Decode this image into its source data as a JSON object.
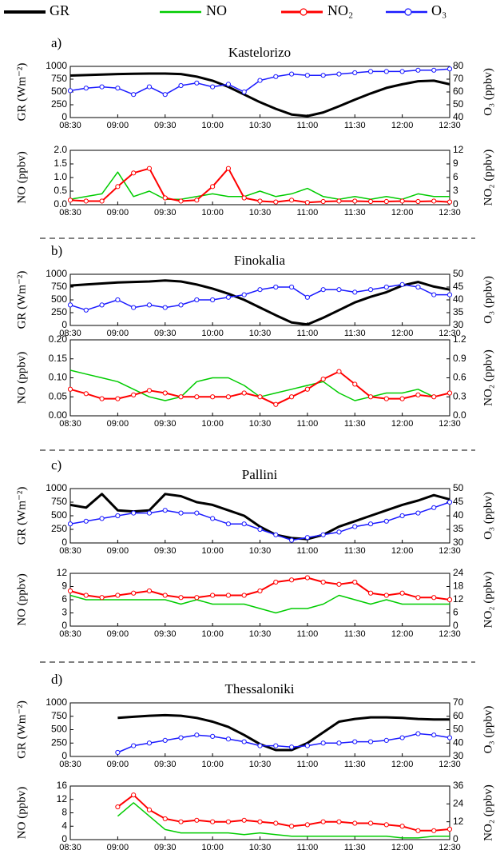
{
  "chart_data": [
    {
      "type": "line",
      "label": "a)",
      "title": "Kastelorizo",
      "ylabel": "GR (Wm⁻²)",
      "y2label": "O₃ (ppbv)",
      "x": [
        "08:30",
        "08:40",
        "08:50",
        "09:00",
        "09:10",
        "09:20",
        "09:30",
        "09:40",
        "09:50",
        "10:00",
        "10:10",
        "10:20",
        "10:30",
        "10:40",
        "10:50",
        "11:00",
        "11:10",
        "11:20",
        "11:30",
        "11:40",
        "11:50",
        "12:00",
        "12:10",
        "12:20",
        "12:30"
      ],
      "xlim": [
        "08:30",
        "12:30"
      ],
      "xticks": [
        "08:30",
        "09:00",
        "09:30",
        "10:00",
        "10:30",
        "11:00",
        "11:30",
        "12:00",
        "12:30"
      ],
      "ylim": [
        0,
        1000
      ],
      "yticks": [
        0,
        250,
        500,
        750,
        1000
      ],
      "y2lim": [
        40,
        80
      ],
      "y2ticks": [
        40,
        50,
        60,
        70,
        80
      ],
      "series": [
        {
          "name": "GR",
          "color": "#000000",
          "width": 3,
          "values": [
            820,
            830,
            840,
            850,
            855,
            860,
            860,
            850,
            800,
            720,
            600,
            450,
            300,
            170,
            60,
            30,
            100,
            220,
            350,
            470,
            580,
            650,
            710,
            720,
            650
          ]
        },
        {
          "name": "O₃",
          "color": "#1a1aff",
          "width": 1.5,
          "marker": "circle",
          "axis": "y2",
          "values": [
            61,
            63,
            64,
            63,
            58,
            64,
            58,
            65,
            67,
            64,
            66,
            60,
            69,
            72,
            74,
            73,
            73,
            74,
            75,
            76,
            76,
            76,
            77,
            77,
            78
          ]
        }
      ]
    },
    {
      "type": "line",
      "ylabel": "NO (ppbv)",
      "y2label": "NO₂ (ppbv)",
      "x": [
        "08:30",
        "08:40",
        "08:50",
        "09:00",
        "09:10",
        "09:20",
        "09:30",
        "09:40",
        "09:50",
        "10:00",
        "10:10",
        "10:20",
        "10:30",
        "10:40",
        "10:50",
        "11:00",
        "11:10",
        "11:20",
        "11:30",
        "11:40",
        "11:50",
        "12:00",
        "12:10",
        "12:20",
        "12:30"
      ],
      "xlim": [
        "08:30",
        "12:30"
      ],
      "xticks": [
        "08:30",
        "09:00",
        "09:30",
        "10:00",
        "10:30",
        "11:00",
        "11:30",
        "12:00",
        "12:30"
      ],
      "ylim": [
        0,
        2
      ],
      "yticks": [
        {
          "value": 0,
          "label": "0.0"
        },
        {
          "value": 0.5,
          "label": "0.5"
        },
        {
          "value": 1,
          "label": "1.0"
        },
        {
          "value": 1.5,
          "label": "1.5"
        },
        {
          "value": 2,
          "label": "2.0"
        }
      ],
      "y2lim": [
        0,
        12
      ],
      "y2ticks": [
        0,
        3,
        6,
        9,
        12
      ],
      "series": [
        {
          "name": "NO",
          "color": "#00cc00",
          "width": 1.5,
          "values": [
            0.2,
            0.3,
            0.4,
            1.2,
            0.3,
            0.5,
            0.2,
            0.2,
            0.3,
            0.4,
            0.3,
            0.3,
            0.5,
            0.3,
            0.4,
            0.6,
            0.3,
            0.2,
            0.3,
            0.2,
            0.3,
            0.2,
            0.4,
            0.3,
            0.3
          ]
        },
        {
          "name": "NO₂",
          "color": "#ff0000",
          "width": 2,
          "marker": "circle",
          "axis": "y2",
          "values": [
            1,
            0.8,
            0.8,
            4,
            7,
            8,
            1.5,
            0.8,
            1,
            4,
            8,
            1.5,
            0.8,
            0.6,
            1,
            0.5,
            0.7,
            0.8,
            0.8,
            0.7,
            0.7,
            0.8,
            0.7,
            0.8,
            0.6
          ]
        }
      ]
    },
    {
      "type": "line",
      "label": "b)",
      "title": "Finokalia",
      "ylabel": "GR (Wm⁻²)",
      "y2label": "O₃ (ppbv)",
      "x": [
        "08:30",
        "08:40",
        "08:50",
        "09:00",
        "09:10",
        "09:20",
        "09:30",
        "09:40",
        "09:50",
        "10:00",
        "10:10",
        "10:20",
        "10:30",
        "10:40",
        "10:50",
        "11:00",
        "11:10",
        "11:20",
        "11:30",
        "11:40",
        "11:50",
        "12:00",
        "12:10",
        "12:20",
        "12:30"
      ],
      "xlim": [
        "08:30",
        "12:30"
      ],
      "xticks": [
        "08:30",
        "09:00",
        "09:30",
        "10:00",
        "10:30",
        "11:00",
        "11:30",
        "12:00",
        "12:30"
      ],
      "ylim": [
        0,
        1000
      ],
      "yticks": [
        0,
        250,
        500,
        750,
        1000
      ],
      "y2lim": [
        30,
        50
      ],
      "y2ticks": [
        30,
        35,
        40,
        45,
        50
      ],
      "series": [
        {
          "color": "#000000",
          "width": 3,
          "values": [
            780,
            800,
            820,
            840,
            850,
            860,
            880,
            860,
            800,
            720,
            620,
            500,
            350,
            200,
            60,
            20,
            150,
            300,
            450,
            560,
            650,
            780,
            850,
            760,
            700
          ]
        },
        {
          "color": "#1a1aff",
          "width": 1.5,
          "marker": "circle",
          "axis": "y2",
          "values": [
            38,
            36,
            38,
            40,
            37,
            38,
            37,
            38,
            40,
            40,
            41,
            42,
            44,
            45,
            45,
            41,
            44,
            44,
            43,
            44,
            45,
            46,
            45,
            42,
            42
          ]
        }
      ]
    },
    {
      "type": "line",
      "ylabel": "NO (ppbv)",
      "y2label": "NO₂ (ppbv)",
      "x": [
        "08:30",
        "08:40",
        "08:50",
        "09:00",
        "09:10",
        "09:20",
        "09:30",
        "09:40",
        "09:50",
        "10:00",
        "10:10",
        "10:20",
        "10:30",
        "10:40",
        "10:50",
        "11:00",
        "11:10",
        "11:20",
        "11:30",
        "11:40",
        "11:50",
        "12:00",
        "12:10",
        "12:20",
        "12:30"
      ],
      "xlim": [
        "08:30",
        "12:30"
      ],
      "xticks": [
        "08:30",
        "09:00",
        "09:30",
        "10:00",
        "10:30",
        "11:00",
        "11:30",
        "12:00",
        "12:30"
      ],
      "ylim": [
        0,
        0.2
      ],
      "yticks": [
        {
          "value": 0,
          "label": "0.00"
        },
        {
          "value": 0.05,
          "label": "0.05"
        },
        {
          "value": 0.1,
          "label": "0.10"
        },
        {
          "value": 0.15,
          "label": "0.15"
        },
        {
          "value": 0.2,
          "label": "0.20"
        }
      ],
      "y2lim": [
        0,
        1.2
      ],
      "y2ticks": [
        {
          "value": 0,
          "label": "0.0"
        },
        0.3,
        0.6,
        0.9,
        1.2
      ],
      "series": [
        {
          "color": "#00cc00",
          "width": 1.5,
          "values": [
            0.12,
            0.11,
            0.1,
            0.09,
            0.07,
            0.05,
            0.04,
            0.05,
            0.09,
            0.1,
            0.1,
            0.08,
            0.05,
            0.06,
            0.07,
            0.08,
            0.09,
            0.06,
            0.04,
            0.05,
            0.06,
            0.06,
            0.07,
            0.05,
            0.06
          ]
        },
        {
          "color": "#ff0000",
          "width": 2,
          "marker": "circle",
          "axis": "y2",
          "values": [
            0.42,
            0.35,
            0.27,
            0.27,
            0.33,
            0.4,
            0.36,
            0.3,
            0.3,
            0.3,
            0.3,
            0.36,
            0.3,
            0.18,
            0.3,
            0.42,
            0.58,
            0.7,
            0.5,
            0.3,
            0.27,
            0.27,
            0.33,
            0.3,
            0.36
          ]
        }
      ]
    },
    {
      "type": "line",
      "label": "c)",
      "title": "Pallini",
      "ylabel": "GR (Wm⁻²)",
      "y2label": "O₃ (ppbv)",
      "x": [
        "08:30",
        "08:40",
        "08:50",
        "09:00",
        "09:10",
        "09:20",
        "09:30",
        "09:40",
        "09:50",
        "10:00",
        "10:10",
        "10:20",
        "10:30",
        "10:40",
        "10:50",
        "11:00",
        "11:10",
        "11:20",
        "11:30",
        "11:40",
        "11:50",
        "12:00",
        "12:10",
        "12:20",
        "12:30"
      ],
      "xlim": [
        "08:30",
        "12:30"
      ],
      "xticks": [
        "08:30",
        "09:00",
        "09:30",
        "10:00",
        "10:30",
        "11:00",
        "11:30",
        "12:00",
        "12:30"
      ],
      "ylim": [
        0,
        1000
      ],
      "yticks": [
        0,
        250,
        500,
        750,
        1000
      ],
      "y2lim": [
        30,
        50
      ],
      "y2ticks": [
        30,
        35,
        40,
        45,
        50
      ],
      "series": [
        {
          "color": "#000000",
          "width": 3,
          "values": [
            700,
            650,
            900,
            600,
            580,
            600,
            900,
            860,
            750,
            700,
            600,
            500,
            300,
            150,
            90,
            70,
            150,
            300,
            400,
            500,
            600,
            700,
            780,
            880,
            800
          ]
        },
        {
          "color": "#1a1aff",
          "width": 1.5,
          "marker": "circle",
          "axis": "y2",
          "values": [
            37,
            38,
            39,
            40,
            41,
            41,
            42,
            41,
            41,
            39,
            37,
            37,
            35,
            33,
            31,
            32,
            33,
            34,
            36,
            37,
            38,
            40,
            41,
            43,
            45
          ]
        }
      ]
    },
    {
      "type": "line",
      "ylabel": "NO (ppbv)",
      "y2label": "NO₂ (ppbv)",
      "x": [
        "08:30",
        "08:40",
        "08:50",
        "09:00",
        "09:10",
        "09:20",
        "09:30",
        "09:40",
        "09:50",
        "10:00",
        "10:10",
        "10:20",
        "10:30",
        "10:40",
        "10:50",
        "11:00",
        "11:10",
        "11:20",
        "11:30",
        "11:40",
        "11:50",
        "12:00",
        "12:10",
        "12:20",
        "12:30"
      ],
      "xlim": [
        "08:30",
        "12:30"
      ],
      "xticks": [
        "08:30",
        "09:00",
        "09:30",
        "10:00",
        "10:30",
        "11:00",
        "11:30",
        "12:00",
        "12:30"
      ],
      "ylim": [
        0,
        12
      ],
      "yticks": [
        0,
        3,
        6,
        9,
        12
      ],
      "y2lim": [
        0,
        24
      ],
      "y2ticks": [
        0,
        6,
        12,
        18,
        24
      ],
      "series": [
        {
          "color": "#00cc00",
          "width": 1.5,
          "values": [
            7,
            6,
            6,
            6,
            6,
            6,
            6,
            5,
            6,
            5,
            5,
            5,
            4,
            3,
            4,
            4,
            5,
            7,
            6,
            5,
            6,
            5,
            5,
            5,
            5
          ]
        },
        {
          "color": "#ff0000",
          "width": 2,
          "marker": "circle",
          "axis": "y2",
          "values": [
            16,
            14,
            13,
            14,
            15,
            16,
            14,
            13,
            13,
            14,
            14,
            14,
            16,
            20,
            21,
            22,
            20,
            19,
            20,
            15,
            14,
            15,
            13,
            13,
            12
          ]
        }
      ]
    },
    {
      "type": "line",
      "label": "d)",
      "title": "Thessaloniki",
      "ylabel": "GR (Wm⁻²)",
      "y2label": "O₃ (ppbv)",
      "x": [
        "08:30",
        "08:40",
        "08:50",
        "09:00",
        "09:10",
        "09:20",
        "09:30",
        "09:40",
        "09:50",
        "10:00",
        "10:10",
        "10:20",
        "10:30",
        "10:40",
        "10:50",
        "11:00",
        "11:10",
        "11:20",
        "11:30",
        "11:40",
        "11:50",
        "12:00",
        "12:10",
        "12:20",
        "12:30"
      ],
      "xlim": [
        "08:30",
        "12:30"
      ],
      "xticks": [
        "08:30",
        "09:00",
        "09:30",
        "10:00",
        "10:30",
        "11:00",
        "11:30",
        "12:00",
        "12:30"
      ],
      "ylim": [
        0,
        1000
      ],
      "yticks": [
        0,
        250,
        500,
        750,
        1000
      ],
      "y2lim": [
        30,
        70
      ],
      "y2ticks": [
        30,
        40,
        50,
        60,
        70
      ],
      "series": [
        {
          "color": "#000000",
          "width": 3,
          "values": [
            null,
            null,
            null,
            720,
            740,
            760,
            770,
            760,
            720,
            650,
            550,
            400,
            230,
            120,
            120,
            250,
            450,
            650,
            700,
            730,
            730,
            720,
            700,
            690,
            690
          ]
        },
        {
          "color": "#1a1aff",
          "width": 1.5,
          "marker": "circle",
          "axis": "y2",
          "values": [
            null,
            null,
            null,
            33,
            38,
            40,
            42,
            44,
            46,
            45,
            43,
            41,
            38,
            38,
            37,
            38,
            40,
            40,
            41,
            41,
            42,
            44,
            47,
            46,
            44
          ]
        }
      ]
    },
    {
      "type": "line",
      "ylabel": "NO (ppbv)",
      "y2label": "NO₂ (ppbv)",
      "x": [
        "08:30",
        "08:40",
        "08:50",
        "09:00",
        "09:10",
        "09:20",
        "09:30",
        "09:40",
        "09:50",
        "10:00",
        "10:10",
        "10:20",
        "10:30",
        "10:40",
        "10:50",
        "11:00",
        "11:10",
        "11:20",
        "11:30",
        "11:40",
        "11:50",
        "12:00",
        "12:10",
        "12:20",
        "12:30"
      ],
      "xlim": [
        "08:30",
        "12:30"
      ],
      "xticks": [
        "08:30",
        "09:00",
        "09:30",
        "10:00",
        "10:30",
        "11:00",
        "11:30",
        "12:00",
        "12:30"
      ],
      "ylim": [
        0,
        16
      ],
      "yticks": [
        0,
        4,
        8,
        12,
        16
      ],
      "y2lim": [
        0,
        36
      ],
      "y2ticks": [
        0,
        12,
        24,
        36
      ],
      "series": [
        {
          "color": "#00cc00",
          "width": 1.5,
          "values": [
            null,
            null,
            null,
            7,
            11,
            7,
            3,
            2,
            2,
            2,
            2,
            1.5,
            2,
            1.5,
            1,
            1,
            1,
            1,
            1,
            1,
            1,
            0.5,
            0.5,
            1,
            1
          ]
        },
        {
          "color": "#ff0000",
          "width": 2,
          "marker": "circle",
          "axis": "y2",
          "values": [
            null,
            null,
            null,
            22,
            30,
            20,
            14,
            12,
            13,
            12,
            12,
            13,
            12,
            11,
            9,
            10,
            12,
            12,
            11,
            11,
            10,
            9,
            6,
            6,
            7
          ]
        }
      ]
    }
  ]
}
